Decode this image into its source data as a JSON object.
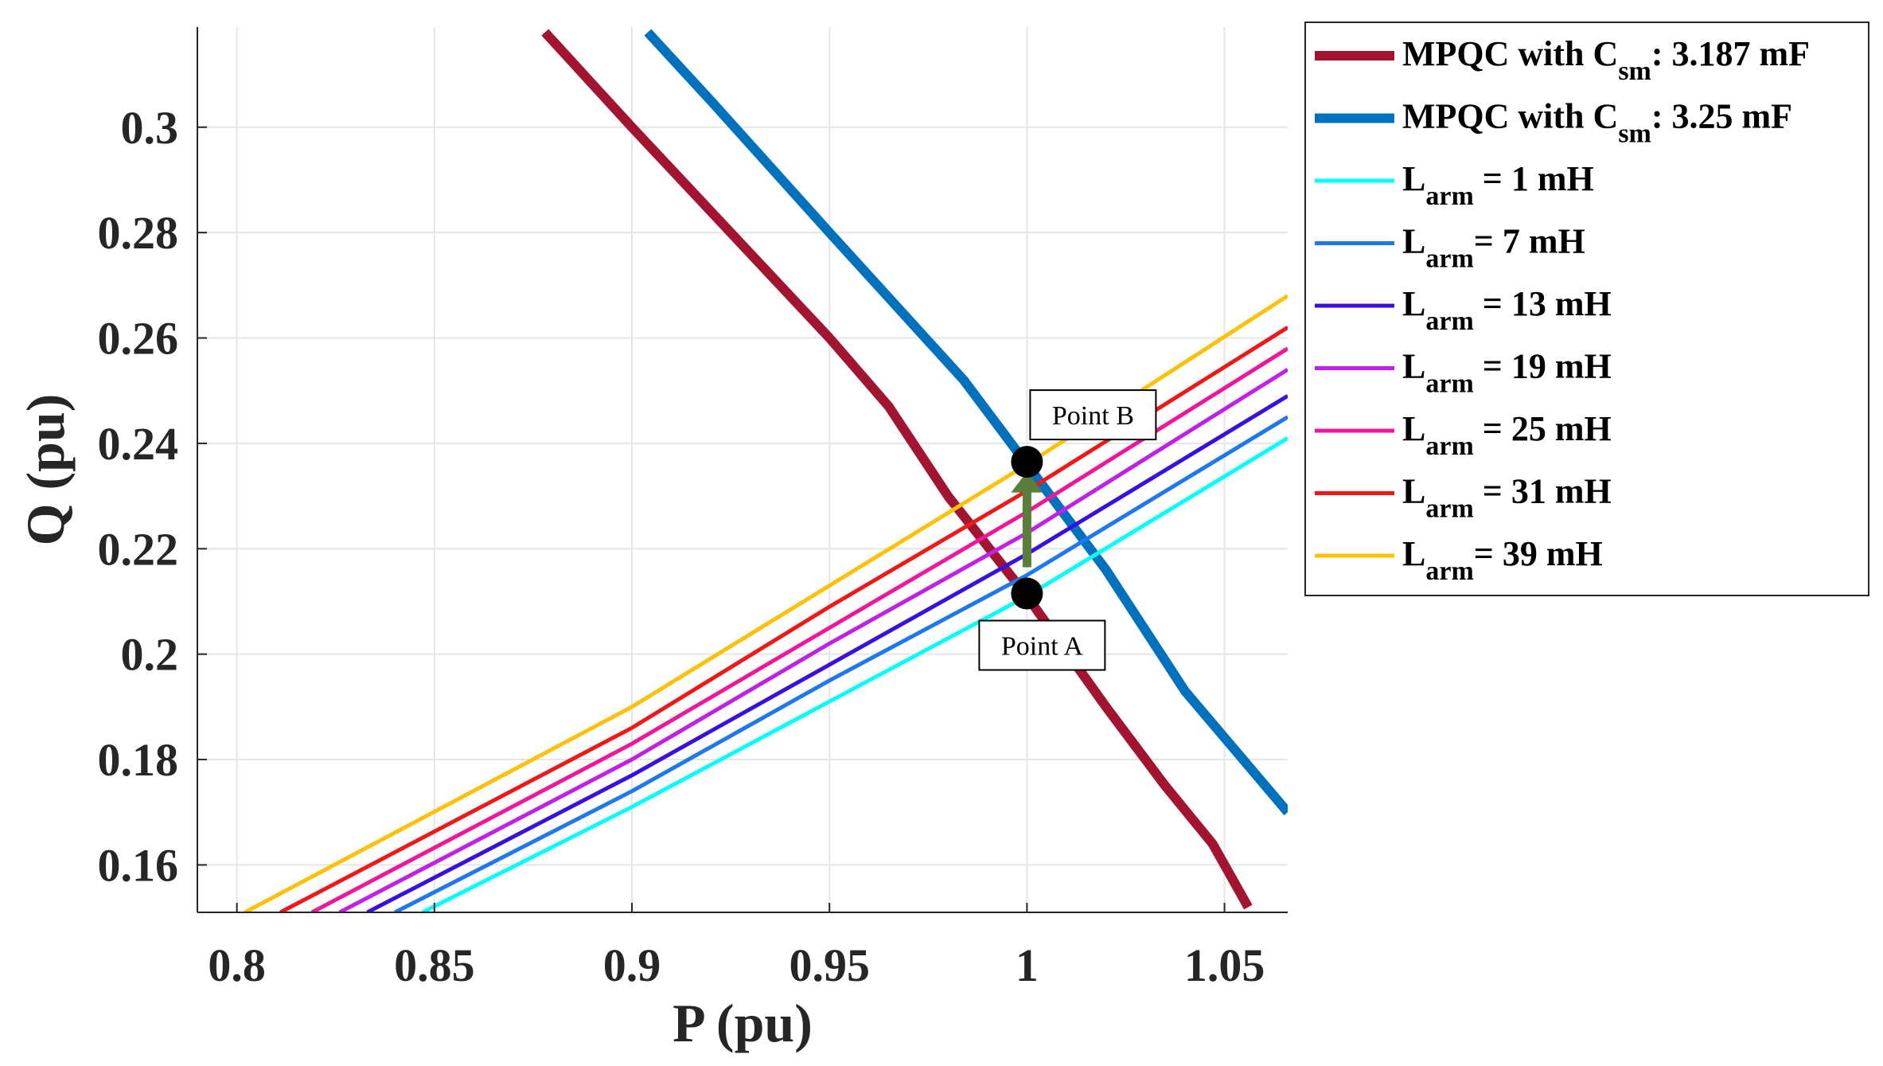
{
  "chart_data": {
    "type": "line",
    "title": "",
    "xlabel": "P (pu)",
    "ylabel": "Q (pu)",
    "xlim": [
      0.79,
      1.066
    ],
    "ylim": [
      0.151,
      0.319
    ],
    "xticks": [
      0.8,
      0.85,
      0.9,
      0.95,
      1,
      1.05
    ],
    "xtick_labels": [
      "0.8",
      "0.85",
      "0.9",
      "0.95",
      "1",
      "1.05"
    ],
    "yticks": [
      0.16,
      0.18,
      0.2,
      0.22,
      0.24,
      0.26,
      0.28,
      0.3
    ],
    "ytick_labels": [
      "0.16",
      "0.18",
      "0.2",
      "0.22",
      "0.24",
      "0.26",
      "0.28",
      "0.3"
    ],
    "grid": true,
    "legend_position": "outside-right-top",
    "series": [
      {
        "name": "MPQC with Csm: 3.187 mF",
        "legend": {
          "main": "MPQC with C",
          "sub": "sm",
          "rest": ": 3.187 mF"
        },
        "color": "#A2142F",
        "width": "thick",
        "points": [
          [
            0.878,
            0.318
          ],
          [
            0.9,
            0.3
          ],
          [
            0.95,
            0.26
          ],
          [
            0.965,
            0.247
          ],
          [
            0.98,
            0.23
          ],
          [
            1.0,
            0.211
          ],
          [
            1.02,
            0.19
          ],
          [
            1.035,
            0.175
          ],
          [
            1.047,
            0.164
          ],
          [
            1.056,
            0.152
          ]
        ]
      },
      {
        "name": "MPQC with Csm: 3.25 mF",
        "legend": {
          "main": "MPQC with C",
          "sub": "sm",
          "rest": ": 3.25 mF"
        },
        "color": "#0072BD",
        "width": "thick",
        "points": [
          [
            0.904,
            0.318
          ],
          [
            0.92,
            0.305
          ],
          [
            0.95,
            0.28
          ],
          [
            0.984,
            0.252
          ],
          [
            1.0,
            0.236
          ],
          [
            1.02,
            0.216
          ],
          [
            1.04,
            0.193
          ],
          [
            1.066,
            0.17
          ]
        ]
      },
      {
        "name": "Larm = 1 mH",
        "legend": {
          "main": "L",
          "sub": "arm",
          "rest": " = 1 mH"
        },
        "color": "#00FFFF",
        "width": "thin",
        "points": [
          [
            0.847,
            0.151
          ],
          [
            0.9,
            0.171
          ],
          [
            0.95,
            0.191
          ],
          [
            1.0,
            0.211
          ],
          [
            1.066,
            0.241
          ]
        ]
      },
      {
        "name": "Larm = 7 mH",
        "legend": {
          "main": "L",
          "sub": "arm",
          "rest": "= 7 mH"
        },
        "color": "#1F78F0",
        "width": "thin",
        "points": [
          [
            0.84,
            0.151
          ],
          [
            0.9,
            0.174
          ],
          [
            0.95,
            0.195
          ],
          [
            1.0,
            0.215
          ],
          [
            1.066,
            0.245
          ]
        ]
      },
      {
        "name": "Larm = 13 mH",
        "legend": {
          "main": "L",
          "sub": "arm",
          "rest": " = 13 mH"
        },
        "color": "#3A10E0",
        "width": "thin",
        "points": [
          [
            0.833,
            0.151
          ],
          [
            0.9,
            0.177
          ],
          [
            0.95,
            0.198
          ],
          [
            1.0,
            0.219
          ],
          [
            1.066,
            0.249
          ]
        ]
      },
      {
        "name": "Larm = 19 mH",
        "legend": {
          "main": "L",
          "sub": "arm",
          "rest": " = 19 mH"
        },
        "color": "#C020E8",
        "width": "thin",
        "points": [
          [
            0.826,
            0.151
          ],
          [
            0.9,
            0.18
          ],
          [
            0.95,
            0.202
          ],
          [
            1.0,
            0.223
          ],
          [
            1.066,
            0.254
          ]
        ]
      },
      {
        "name": "Larm = 25 mH",
        "legend": {
          "main": "L",
          "sub": "arm",
          "rest": " = 25 mH"
        },
        "color": "#F01898",
        "width": "thin",
        "points": [
          [
            0.819,
            0.151
          ],
          [
            0.9,
            0.183
          ],
          [
            0.95,
            0.205
          ],
          [
            1.0,
            0.227
          ],
          [
            1.066,
            0.258
          ]
        ]
      },
      {
        "name": "Larm = 31 mH",
        "legend": {
          "main": "L",
          "sub": "arm",
          "rest": " = 31 mH"
        },
        "color": "#F01818",
        "width": "thin",
        "points": [
          [
            0.811,
            0.151
          ],
          [
            0.9,
            0.186
          ],
          [
            0.95,
            0.209
          ],
          [
            1.0,
            0.231
          ],
          [
            1.066,
            0.262
          ]
        ]
      },
      {
        "name": "Larm = 39 mH",
        "legend": {
          "main": "L",
          "sub": "arm",
          "rest": "= 39 mH"
        },
        "color": "#FFC107",
        "width": "thin",
        "points": [
          [
            0.802,
            0.151
          ],
          [
            0.9,
            0.19
          ],
          [
            0.95,
            0.213
          ],
          [
            1.0,
            0.236
          ],
          [
            1.066,
            0.268
          ]
        ]
      }
    ],
    "annotations": [
      {
        "name": "point-a",
        "label": "Point A",
        "x": 1.0,
        "y": 0.2115,
        "color": "#000000"
      },
      {
        "name": "point-b",
        "label": "Point B",
        "x": 1.0,
        "y": 0.2365,
        "color": "#000000"
      }
    ],
    "arrow": {
      "from": [
        1.0,
        0.2165
      ],
      "to": [
        1.0,
        0.234
      ],
      "color": "#5B7F3A"
    }
  }
}
